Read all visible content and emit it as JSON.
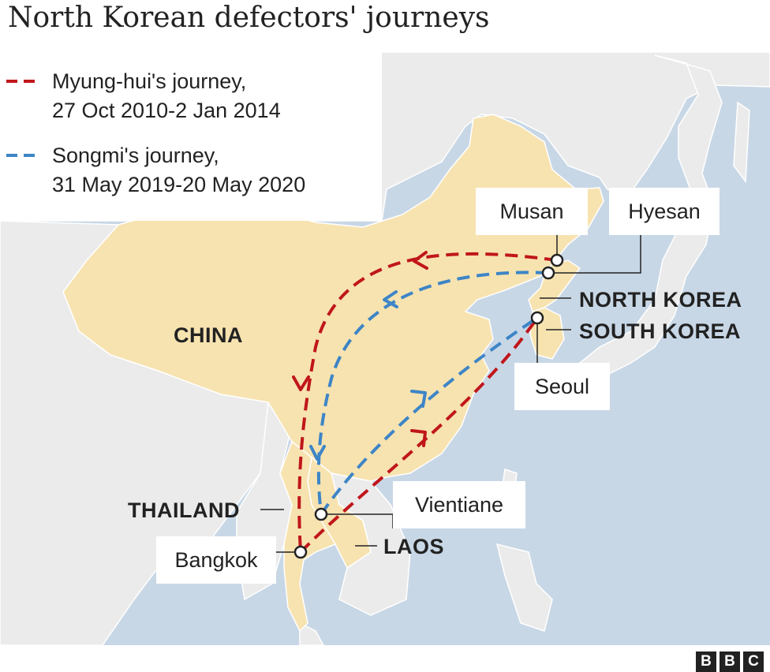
{
  "title": "North Korean defectors' journeys",
  "legend": {
    "myunghui_name": "Myung-hui's journey,",
    "myunghui_dates": "27 Oct 2010-2 Jan 2014",
    "songmi_name": "Songmi's journey,",
    "songmi_dates": "31 May 2019-20 May 2020"
  },
  "places": {
    "musan": "Musan",
    "hyesan": "Hyesan",
    "seoul": "Seoul",
    "vientiane": "Vientiane",
    "bangkok": "Bangkok"
  },
  "countries": {
    "china": "CHINA",
    "north_korea": "NORTH KOREA",
    "south_korea": "SOUTH KOREA",
    "thailand": "THAILAND",
    "laos": "LAOS"
  },
  "logo": [
    "B",
    "B",
    "C"
  ],
  "colors": {
    "myunghui_route": "#c0161b",
    "songmi_route": "#3d85c6",
    "sea": "#c8d7e6",
    "highlight_land": "#f7e3b0",
    "other_land": "#ebebeb"
  }
}
